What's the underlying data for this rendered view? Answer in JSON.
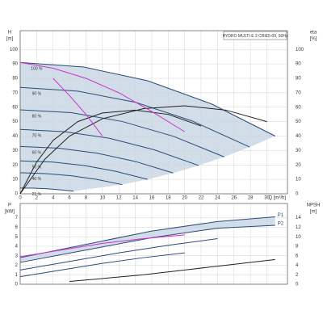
{
  "chart_data": [
    {
      "type": "line",
      "title": "HYDRO MULTI-E 3 CRIE5-09, 50Hz",
      "ylabel": [
        "H",
        "[m]"
      ],
      "y2label": [
        "eta",
        "[%]"
      ],
      "xlabel": "Q [m³/h]",
      "xlim": [
        0,
        32.5
      ],
      "xticks": [
        0,
        2,
        4,
        6,
        8,
        10,
        12,
        14,
        16,
        18,
        20,
        22,
        24,
        26,
        28,
        30
      ],
      "ylim": [
        0,
        113
      ],
      "yticks": [
        0,
        10,
        20,
        30,
        40,
        50,
        60,
        70,
        80,
        90,
        100
      ],
      "y2lim": [
        0,
        113
      ],
      "y2ticks": [
        0,
        10,
        20,
        30,
        40,
        50,
        60,
        70,
        80,
        90,
        100
      ],
      "grid": true,
      "area_color": "#c9d7e4",
      "series": [
        {
          "name": "100 %",
          "color": "#2b4b7a",
          "x": [
            0,
            7.75,
            15.5,
            23.25,
            31
          ],
          "values": [
            91,
            87.8,
            78.3,
            62.3,
            40
          ]
        },
        {
          "name": "90 %",
          "color": "#2b4b7a",
          "x": [
            0,
            7,
            14,
            20.9,
            27.9
          ],
          "values": [
            73.7,
            71.1,
            63.4,
            50.5,
            32.4
          ]
        },
        {
          "name": "80 %",
          "color": "#2b4b7a",
          "x": [
            0,
            6.2,
            12.4,
            18.6,
            24.8
          ],
          "values": [
            58.2,
            56.2,
            50.1,
            39.9,
            25.6
          ]
        },
        {
          "name": "70 %",
          "color": "#2b4b7a",
          "x": [
            0,
            5.4,
            10.9,
            16.3,
            21.7
          ],
          "values": [
            44.6,
            43,
            38.4,
            30.5,
            19.6
          ]
        },
        {
          "name": "60 %",
          "color": "#2b4b7a",
          "x": [
            0,
            4.7,
            9.3,
            14,
            18.6
          ],
          "values": [
            32.8,
            31.6,
            28.2,
            22.4,
            14.4
          ]
        },
        {
          "name": "50 %",
          "color": "#2b4b7a",
          "x": [
            0,
            3.9,
            7.8,
            11.6,
            15.5
          ],
          "values": [
            22.8,
            22,
            19.6,
            15.6,
            10
          ]
        },
        {
          "name": "40 %",
          "color": "#2b4b7a",
          "x": [
            0,
            3.1,
            6.2,
            9.3,
            12.4
          ],
          "values": [
            14.6,
            14,
            12.5,
            10,
            6.4
          ]
        },
        {
          "name": "21 %",
          "color": "#2b4b7a",
          "x": [
            0,
            1.6,
            3.3,
            4.9,
            6.5
          ],
          "values": [
            4,
            3.9,
            3.5,
            2.7,
            1.8
          ]
        },
        {
          "color": "#222",
          "axis": "y2",
          "x": [
            0,
            3,
            6,
            10,
            15,
            20,
            25,
            30
          ],
          "values": [
            0,
            24,
            40,
            52,
            59,
            61,
            58,
            50
          ]
        },
        {
          "color": "#222",
          "axis": "y2",
          "x": [
            0,
            2,
            4,
            7,
            10,
            14,
            18,
            22
          ],
          "values": [
            0,
            22,
            37,
            50,
            56,
            58,
            55,
            47
          ]
        },
        {
          "color": "#cc33cc",
          "x": [
            0,
            4,
            8,
            12,
            16,
            20
          ],
          "values": [
            91,
            87,
            80,
            70,
            57,
            43
          ]
        },
        {
          "color": "#cc33cc",
          "x": [
            4,
            6,
            8,
            10
          ],
          "values": [
            80,
            68,
            55,
            40
          ]
        }
      ]
    },
    {
      "type": "line",
      "ylabel": [
        "P",
        "[kW]"
      ],
      "y2label": [
        "NPSH",
        "[m]"
      ],
      "xlim": [
        0,
        32.5
      ],
      "xticks": [
        0,
        2,
        4,
        6,
        8,
        10,
        12,
        14,
        16,
        18,
        20,
        22,
        24,
        26,
        28,
        30
      ],
      "ylim": [
        0,
        8.5
      ],
      "yticks": [
        0,
        1,
        2,
        3,
        4,
        5,
        6,
        7
      ],
      "y2lim": [
        0,
        17
      ],
      "y2ticks": [
        0,
        2,
        4,
        6,
        8,
        10,
        12,
        14
      ],
      "grid": true,
      "area_color": "#c9d7e4",
      "series": [
        {
          "name": "P1",
          "color": "#2b4b7a",
          "x": [
            0,
            8,
            16,
            24,
            31
          ],
          "values": [
            2.8,
            4.2,
            5.6,
            6.6,
            7.1
          ]
        },
        {
          "name": "P2",
          "color": "#2b4b7a",
          "x": [
            0,
            8,
            16,
            24,
            31
          ],
          "values": [
            2.3,
            3.6,
            4.9,
            5.9,
            6.2
          ]
        },
        {
          "color": "#2b4b7a",
          "x": [
            0,
            6,
            12,
            18,
            24
          ],
          "values": [
            1.5,
            2.4,
            3.3,
            4.1,
            4.8
          ]
        },
        {
          "color": "#2b4b7a",
          "x": [
            0,
            5,
            10,
            15,
            20
          ],
          "values": [
            0.8,
            1.5,
            2.2,
            2.8,
            3.3
          ]
        },
        {
          "color": "#cc33cc",
          "x": [
            0,
            5,
            10,
            15,
            20
          ],
          "values": [
            2.9,
            3.6,
            4.3,
            4.8,
            5.2
          ]
        },
        {
          "color": "#222",
          "axis": "y2",
          "x": [
            6,
            10,
            15,
            20,
            25,
            31
          ],
          "values": [
            0.6,
            1.2,
            2,
            3,
            4,
            5.2
          ]
        }
      ]
    }
  ]
}
